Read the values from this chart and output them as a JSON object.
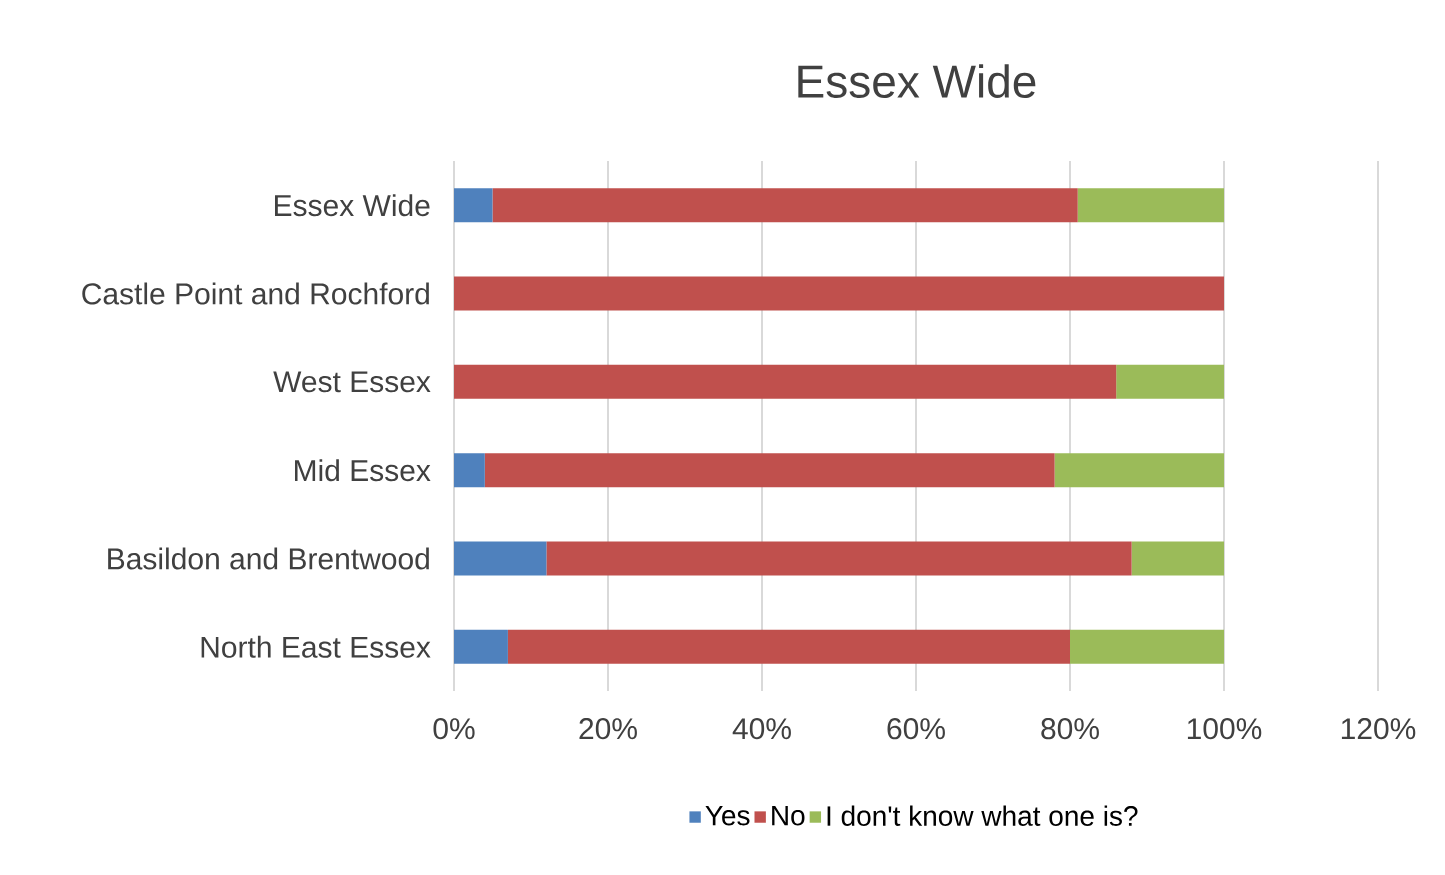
{
  "chart_data": {
    "type": "bar",
    "orientation": "horizontal",
    "stacked": true,
    "title": "Essex Wide",
    "categories": [
      "Essex Wide",
      "Castle Point and Rochford",
      "West Essex",
      "Mid Essex",
      "Basildon and Brentwood",
      "North East Essex"
    ],
    "series": [
      {
        "name": "Yes",
        "color": "#4f81bd",
        "values": [
          5,
          0,
          0,
          4,
          12,
          7
        ]
      },
      {
        "name": "No",
        "color": "#c0504d",
        "values": [
          76,
          100,
          86,
          74,
          76,
          73
        ]
      },
      {
        "name": "I don't know what one is?",
        "color": "#9bbb59",
        "values": [
          19,
          0,
          14,
          22,
          12,
          20
        ]
      }
    ],
    "xlim": [
      0,
      120
    ],
    "xticks": [
      {
        "value": 0,
        "label": "0%"
      },
      {
        "value": 20,
        "label": "20%"
      },
      {
        "value": 40,
        "label": "40%"
      },
      {
        "value": 60,
        "label": "60%"
      },
      {
        "value": 80,
        "label": "80%"
      },
      {
        "value": 100,
        "label": "100%"
      },
      {
        "value": 120,
        "label": "120%"
      }
    ],
    "grid": "x",
    "legend": "bottom"
  }
}
